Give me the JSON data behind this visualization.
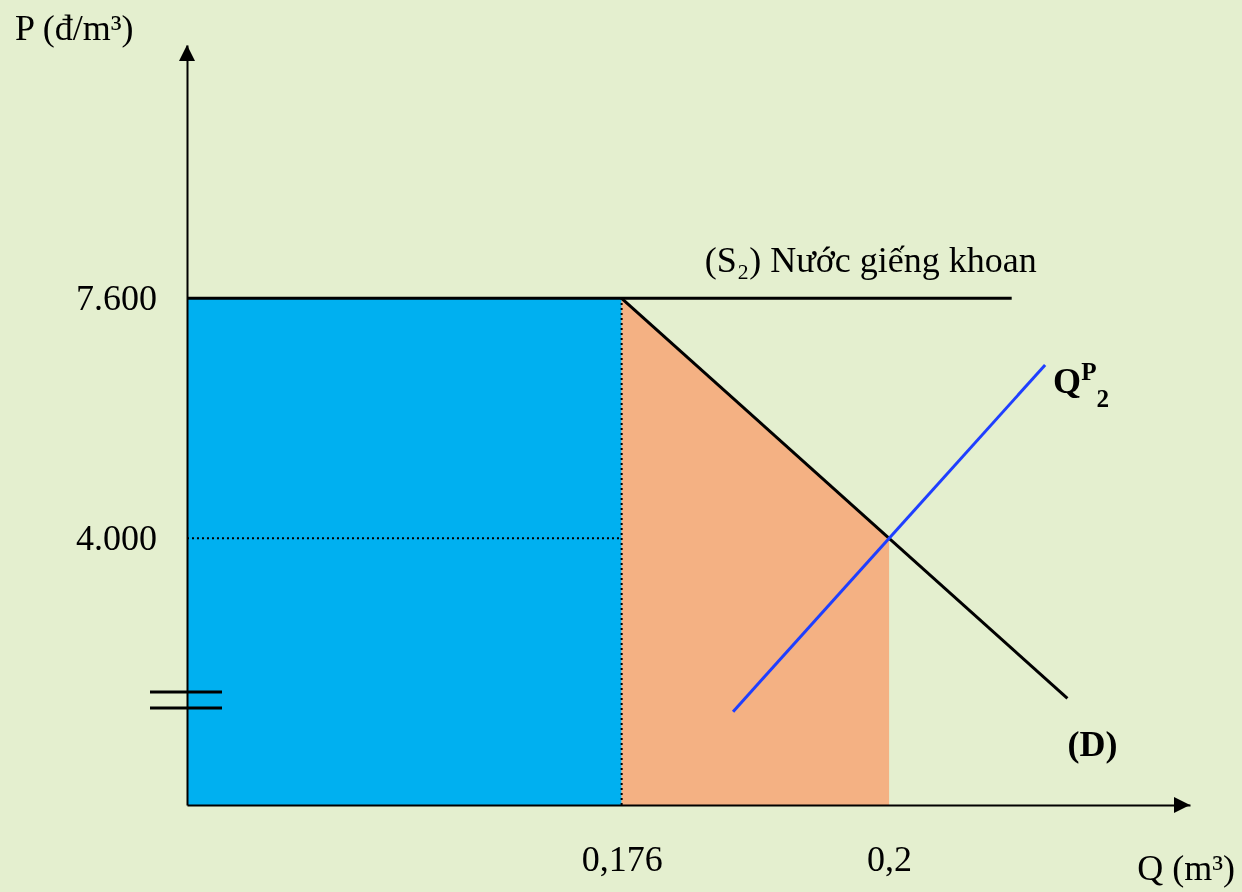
{
  "chart_data": {
    "type": "line",
    "xlabel": "Q (m³)",
    "ylabel": "P (đ/m³)",
    "xlim": [
      0.137,
      0.227
    ],
    "ylim": [
      0,
      11400
    ],
    "xticks": [
      {
        "value": 0.176,
        "label": "0,176"
      },
      {
        "value": 0.2,
        "label": "0,2"
      }
    ],
    "yticks": [
      {
        "value": 4000,
        "label": "4.000"
      },
      {
        "value": 7600,
        "label": "7.600"
      }
    ],
    "series": [
      {
        "type": "area",
        "color": "#00b0f0",
        "x": [
          0.137,
          0.176
        ],
        "values": [
          7600,
          7600
        ]
      },
      {
        "type": "area",
        "color": "#f4b183",
        "x": [
          0.176,
          0.2
        ],
        "values": [
          7600,
          4000
        ]
      },
      {
        "name": "(S₂) Nước giếng khoan",
        "color": "#000000",
        "x": [
          0.137,
          0.211
        ],
        "values": [
          7600,
          7600
        ]
      },
      {
        "name": "(D)",
        "color": "#000000",
        "x": [
          0.176,
          0.216
        ],
        "values": [
          7600,
          1600
        ]
      },
      {
        "name": "Q$^{P}$$_{2}$",
        "color": "#1f3fff",
        "x": [
          0.186,
          0.214
        ],
        "values": [
          1400,
          6600
        ]
      }
    ],
    "ref_lines": [
      {
        "axis": "y",
        "value": 4000,
        "line_style": "dotted",
        "color": "#000000"
      },
      {
        "axis": "x",
        "value": 0.176,
        "line_style": "dotted",
        "color": "#000000"
      }
    ]
  }
}
